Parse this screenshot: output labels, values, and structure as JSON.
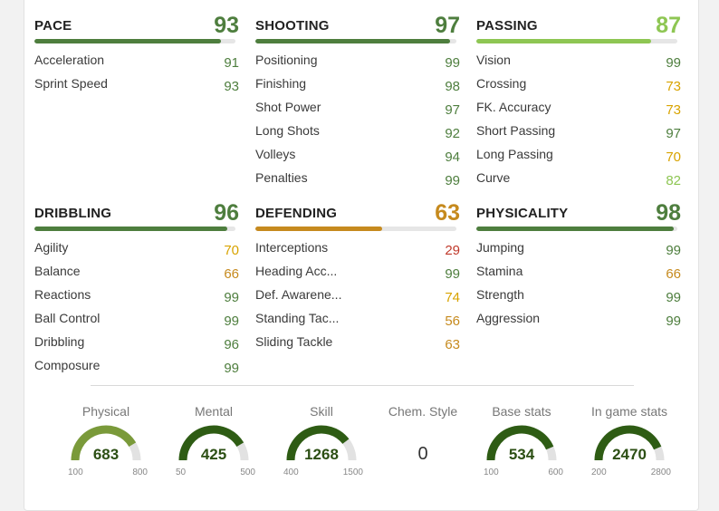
{
  "colors": {
    "green_dark": "#4e7e3e",
    "green_light": "#8ec653",
    "orange": "#c68a1e",
    "red": "#c0392b",
    "amber": "#d8a300",
    "track": "#e2e2e2"
  },
  "groups": [
    {
      "name": "PACE",
      "value": "93",
      "fill": 0.93,
      "color": "#4e7e3e",
      "stats": [
        {
          "label": "Acceleration",
          "value": "91",
          "color": "#4e7e3e"
        },
        {
          "label": "Sprint Speed",
          "value": "93",
          "color": "#4e7e3e"
        }
      ]
    },
    {
      "name": "SHOOTING",
      "value": "97",
      "fill": 0.97,
      "color": "#4e7e3e",
      "stats": [
        {
          "label": "Positioning",
          "value": "99",
          "color": "#4e7e3e"
        },
        {
          "label": "Finishing",
          "value": "98",
          "color": "#4e7e3e"
        },
        {
          "label": "Shot Power",
          "value": "97",
          "color": "#4e7e3e"
        },
        {
          "label": "Long Shots",
          "value": "92",
          "color": "#4e7e3e"
        },
        {
          "label": "Volleys",
          "value": "94",
          "color": "#4e7e3e"
        },
        {
          "label": "Penalties",
          "value": "99",
          "color": "#4e7e3e"
        }
      ]
    },
    {
      "name": "PASSING",
      "value": "87",
      "fill": 0.87,
      "color": "#8ec653",
      "stats": [
        {
          "label": "Vision",
          "value": "99",
          "color": "#4e7e3e"
        },
        {
          "label": "Crossing",
          "value": "73",
          "color": "#d8a300"
        },
        {
          "label": "FK. Accuracy",
          "value": "73",
          "color": "#d8a300"
        },
        {
          "label": "Short Passing",
          "value": "97",
          "color": "#4e7e3e"
        },
        {
          "label": "Long Passing",
          "value": "70",
          "color": "#d8a300"
        },
        {
          "label": "Curve",
          "value": "82",
          "color": "#8ec653"
        }
      ]
    },
    {
      "name": "DRIBBLING",
      "value": "96",
      "fill": 0.96,
      "color": "#4e7e3e",
      "stats": [
        {
          "label": "Agility",
          "value": "70",
          "color": "#d8a300"
        },
        {
          "label": "Balance",
          "value": "66",
          "color": "#c68a1e"
        },
        {
          "label": "Reactions",
          "value": "99",
          "color": "#4e7e3e"
        },
        {
          "label": "Ball Control",
          "value": "99",
          "color": "#4e7e3e"
        },
        {
          "label": "Dribbling",
          "value": "96",
          "color": "#4e7e3e"
        },
        {
          "label": "Composure",
          "value": "99",
          "color": "#4e7e3e"
        }
      ]
    },
    {
      "name": "DEFENDING",
      "value": "63",
      "fill": 0.63,
      "color": "#c68a1e",
      "stats": [
        {
          "label": "Interceptions",
          "value": "29",
          "color": "#c0392b"
        },
        {
          "label": "Heading Acc...",
          "value": "99",
          "color": "#4e7e3e"
        },
        {
          "label": "Def. Awarene...",
          "value": "74",
          "color": "#d8a300"
        },
        {
          "label": "Standing Tac...",
          "value": "56",
          "color": "#c68a1e"
        },
        {
          "label": "Sliding Tackle",
          "value": "63",
          "color": "#c68a1e"
        }
      ]
    },
    {
      "name": "PHYSICALITY",
      "value": "98",
      "fill": 0.98,
      "color": "#4e7e3e",
      "stats": [
        {
          "label": "Jumping",
          "value": "99",
          "color": "#4e7e3e"
        },
        {
          "label": "Stamina",
          "value": "66",
          "color": "#c68a1e"
        },
        {
          "label": "Strength",
          "value": "99",
          "color": "#4e7e3e"
        },
        {
          "label": "Aggression",
          "value": "99",
          "color": "#4e7e3e"
        }
      ]
    }
  ],
  "summary": [
    {
      "label": "Physical",
      "value": "683",
      "min": "100",
      "max": "800",
      "fraction": 0.83,
      "color": "#7a9a3a"
    },
    {
      "label": "Mental",
      "value": "425",
      "min": "50",
      "max": "500",
      "fraction": 0.83,
      "color": "#2e5c14"
    },
    {
      "label": "Skill",
      "value": "1268",
      "min": "400",
      "max": "1500",
      "fraction": 0.79,
      "color": "#2e5c14"
    },
    {
      "label": "Chem. Style",
      "value": "0"
    },
    {
      "label": "Base stats",
      "value": "534",
      "min": "100",
      "max": "600",
      "fraction": 0.87,
      "color": "#2e5c14"
    },
    {
      "label": "In game stats",
      "value": "2470",
      "min": "200",
      "max": "2800",
      "fraction": 0.87,
      "color": "#2e5c14"
    }
  ]
}
